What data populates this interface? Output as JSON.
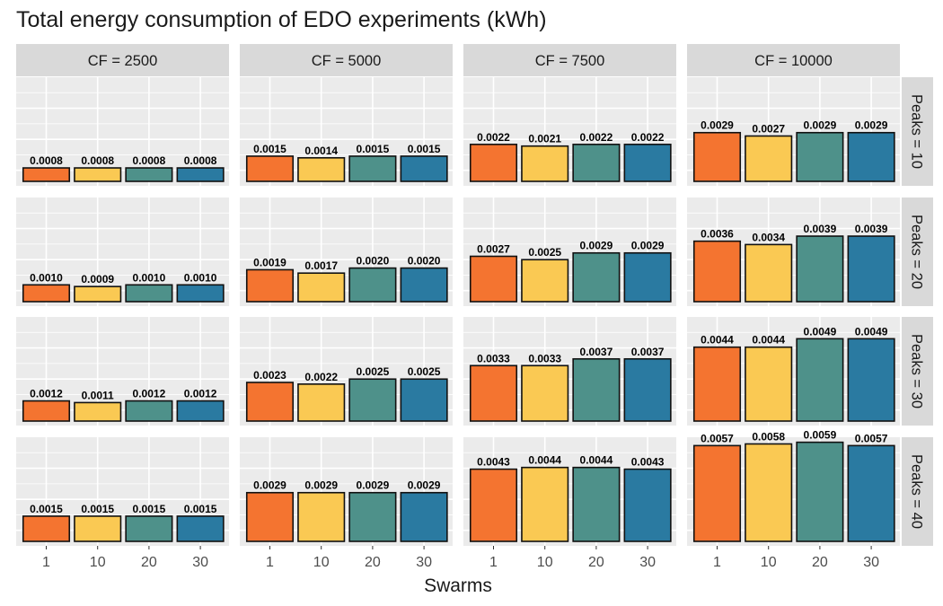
{
  "chart_data": {
    "type": "bar",
    "title": "Total energy consumption of EDO experiments (kWh)",
    "xlabel": "Swarms",
    "ylabel": "",
    "categories": [
      "1",
      "10",
      "20",
      "30"
    ],
    "colors": [
      "#F47430",
      "#FAC953",
      "#4E918A",
      "#2A7AA1"
    ],
    "facet_cols": [
      {
        "label": "CF = 2500"
      },
      {
        "label": "CF = 5000"
      },
      {
        "label": "CF = 7500"
      },
      {
        "label": "CF = 10000"
      }
    ],
    "facet_rows": [
      {
        "label": "Peaks = 10"
      },
      {
        "label": "Peaks = 20"
      },
      {
        "label": "Peaks = 30"
      },
      {
        "label": "Peaks = 40"
      }
    ],
    "ylim": [
      0,
      0.0062
    ],
    "grid": true,
    "legend": "none",
    "panels": [
      [
        {
          "values": [
            0.0008,
            0.0008,
            0.0008,
            0.0008
          ],
          "labels": [
            "0.0008",
            "0.0008",
            "0.0008",
            "0.0008"
          ]
        },
        {
          "values": [
            0.0015,
            0.0014,
            0.0015,
            0.0015
          ],
          "labels": [
            "0.0015",
            "0.0014",
            "0.0015",
            "0.0015"
          ]
        },
        {
          "values": [
            0.0022,
            0.0021,
            0.0022,
            0.0022
          ],
          "labels": [
            "0.0022",
            "0.0021",
            "0.0022",
            "0.0022"
          ]
        },
        {
          "values": [
            0.0029,
            0.0027,
            0.0029,
            0.0029
          ],
          "labels": [
            "0.0029",
            "0.0027",
            "0.0029",
            "0.0029"
          ]
        }
      ],
      [
        {
          "values": [
            0.001,
            0.0009,
            0.001,
            0.001
          ],
          "labels": [
            "0.0010",
            "0.0009",
            "0.0010",
            "0.0010"
          ]
        },
        {
          "values": [
            0.0019,
            0.0017,
            0.002,
            0.002
          ],
          "labels": [
            "0.0019",
            "0.0017",
            "0.0020",
            "0.0020"
          ]
        },
        {
          "values": [
            0.0027,
            0.0025,
            0.0029,
            0.0029
          ],
          "labels": [
            "0.0027",
            "0.0025",
            "0.0029",
            "0.0029"
          ]
        },
        {
          "values": [
            0.0036,
            0.0034,
            0.0039,
            0.0039
          ],
          "labels": [
            "0.0036",
            "0.0034",
            "0.0039",
            "0.0039"
          ]
        }
      ],
      [
        {
          "values": [
            0.0012,
            0.0011,
            0.0012,
            0.0012
          ],
          "labels": [
            "0.0012",
            "0.0011",
            "0.0012",
            "0.0012"
          ]
        },
        {
          "values": [
            0.0023,
            0.0022,
            0.0025,
            0.0025
          ],
          "labels": [
            "0.0023",
            "0.0022",
            "0.0025",
            "0.0025"
          ]
        },
        {
          "values": [
            0.0033,
            0.0033,
            0.0037,
            0.0037
          ],
          "labels": [
            "0.0033",
            "0.0033",
            "0.0037",
            "0.0037"
          ]
        },
        {
          "values": [
            0.0044,
            0.0044,
            0.0049,
            0.0049
          ],
          "labels": [
            "0.0044",
            "0.0044",
            "0.0049",
            "0.0049"
          ]
        }
      ],
      [
        {
          "values": [
            0.0015,
            0.0015,
            0.0015,
            0.0015
          ],
          "labels": [
            "0.0015",
            "0.0015",
            "0.0015",
            "0.0015"
          ]
        },
        {
          "values": [
            0.0029,
            0.0029,
            0.0029,
            0.0029
          ],
          "labels": [
            "0.0029",
            "0.0029",
            "0.0029",
            "0.0029"
          ]
        },
        {
          "values": [
            0.0043,
            0.0044,
            0.0044,
            0.0043
          ],
          "labels": [
            "0.0043",
            "0.0044",
            "0.0044",
            "0.0043"
          ]
        },
        {
          "values": [
            0.0057,
            0.0058,
            0.0059,
            0.0057
          ],
          "labels": [
            "0.0057",
            "0.0058",
            "0.0059",
            "0.0057"
          ]
        }
      ]
    ]
  }
}
